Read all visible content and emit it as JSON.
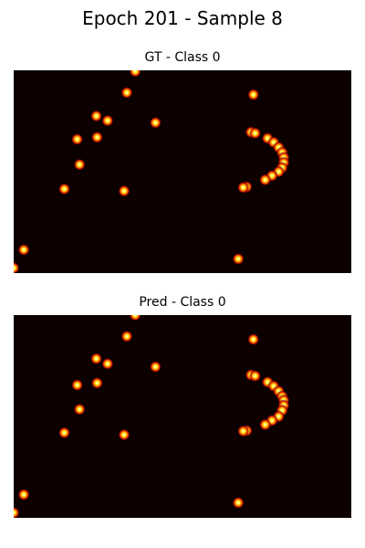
{
  "title": "Epoch 201 - Sample 8",
  "chart_data": [
    {
      "type": "heatmap",
      "title": "GT - Class 0",
      "colormap": "hot",
      "background": "#0c0000",
      "points": [
        [
          0.36,
          0.005
        ],
        [
          0.335,
          0.11
        ],
        [
          0.245,
          0.225
        ],
        [
          0.278,
          0.248
        ],
        [
          0.42,
          0.258
        ],
        [
          0.188,
          0.34
        ],
        [
          0.247,
          0.33
        ],
        [
          0.195,
          0.465
        ],
        [
          0.15,
          0.585
        ],
        [
          0.327,
          0.595
        ],
        [
          0.03,
          0.885
        ],
        [
          0.0,
          0.975
        ],
        [
          0.71,
          0.12
        ],
        [
          0.703,
          0.305
        ],
        [
          0.715,
          0.31
        ],
        [
          0.752,
          0.335
        ],
        [
          0.77,
          0.355
        ],
        [
          0.785,
          0.38
        ],
        [
          0.795,
          0.405
        ],
        [
          0.8,
          0.43
        ],
        [
          0.8,
          0.455
        ],
        [
          0.795,
          0.48
        ],
        [
          0.785,
          0.5
        ],
        [
          0.765,
          0.52
        ],
        [
          0.745,
          0.54
        ],
        [
          0.69,
          0.575
        ],
        [
          0.68,
          0.578
        ],
        [
          0.665,
          0.93
        ]
      ]
    },
    {
      "type": "heatmap",
      "title": "Pred - Class 0",
      "colormap": "hot",
      "background": "#0c0000",
      "points": [
        [
          0.36,
          0.0
        ],
        [
          0.335,
          0.105
        ],
        [
          0.245,
          0.215
        ],
        [
          0.278,
          0.24
        ],
        [
          0.42,
          0.255
        ],
        [
          0.188,
          0.345
        ],
        [
          0.247,
          0.335
        ],
        [
          0.195,
          0.465
        ],
        [
          0.15,
          0.58
        ],
        [
          0.327,
          0.59
        ],
        [
          0.03,
          0.885
        ],
        [
          0.0,
          0.975
        ],
        [
          0.71,
          0.12
        ],
        [
          0.703,
          0.295
        ],
        [
          0.715,
          0.3
        ],
        [
          0.752,
          0.33
        ],
        [
          0.77,
          0.35
        ],
        [
          0.785,
          0.375
        ],
        [
          0.795,
          0.4
        ],
        [
          0.8,
          0.42
        ],
        [
          0.8,
          0.445
        ],
        [
          0.795,
          0.47
        ],
        [
          0.785,
          0.5
        ],
        [
          0.765,
          0.52
        ],
        [
          0.745,
          0.54
        ],
        [
          0.69,
          0.57
        ],
        [
          0.68,
          0.572
        ],
        [
          0.665,
          0.925
        ]
      ]
    }
  ]
}
